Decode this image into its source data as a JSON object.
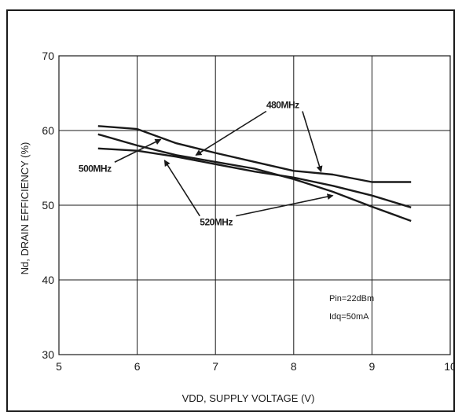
{
  "chart_data": {
    "type": "line",
    "xlabel": "VDD, SUPPLY VOLTAGE (V)",
    "ylabel": "Nd, DRAIN EFFICIENCY (%)",
    "xlim": [
      5,
      10
    ],
    "ylim": [
      30,
      70
    ],
    "xticks": [
      5,
      6,
      7,
      8,
      9,
      10
    ],
    "yticks": [
      30,
      40,
      50,
      60,
      70
    ],
    "grid": true,
    "series": [
      {
        "name": "480MHz",
        "x": [
          5.5,
          6.0,
          6.5,
          7.0,
          7.5,
          8.0,
          8.5,
          9.0,
          9.5
        ],
        "y": [
          60.6,
          60.2,
          58.3,
          57.0,
          55.8,
          54.6,
          54.1,
          53.1,
          53.1
        ]
      },
      {
        "name": "500MHz",
        "x": [
          5.5,
          6.0,
          6.5,
          7.0,
          7.5,
          8.0,
          8.5,
          9.0,
          9.5
        ],
        "y": [
          57.6,
          57.3,
          56.5,
          55.5,
          54.5,
          53.7,
          52.6,
          51.3,
          49.7
        ]
      },
      {
        "name": "520MHz",
        "x": [
          5.5,
          6.0,
          6.5,
          7.0,
          7.5,
          8.0,
          8.5,
          9.0,
          9.5
        ],
        "y": [
          59.5,
          58.0,
          56.7,
          55.8,
          54.9,
          53.5,
          51.8,
          49.8,
          47.9
        ]
      }
    ],
    "labels": [
      {
        "text": "480MHz",
        "x": 7.65,
        "y": 63.0,
        "arrow_to": [
          [
            6.75,
            56.7
          ],
          [
            8.35,
            54.5
          ]
        ]
      },
      {
        "text": "500MHz",
        "x": 5.25,
        "y": 54.5,
        "arrow_to": [
          [
            6.3,
            58.8
          ]
        ]
      },
      {
        "text": "520MHz",
        "x": 6.8,
        "y": 47.3,
        "arrow_to": [
          [
            6.35,
            56.0
          ],
          [
            8.5,
            51.3
          ]
        ]
      }
    ],
    "annotations": [
      "Pin=22dBm",
      "Idq=50mA"
    ]
  }
}
